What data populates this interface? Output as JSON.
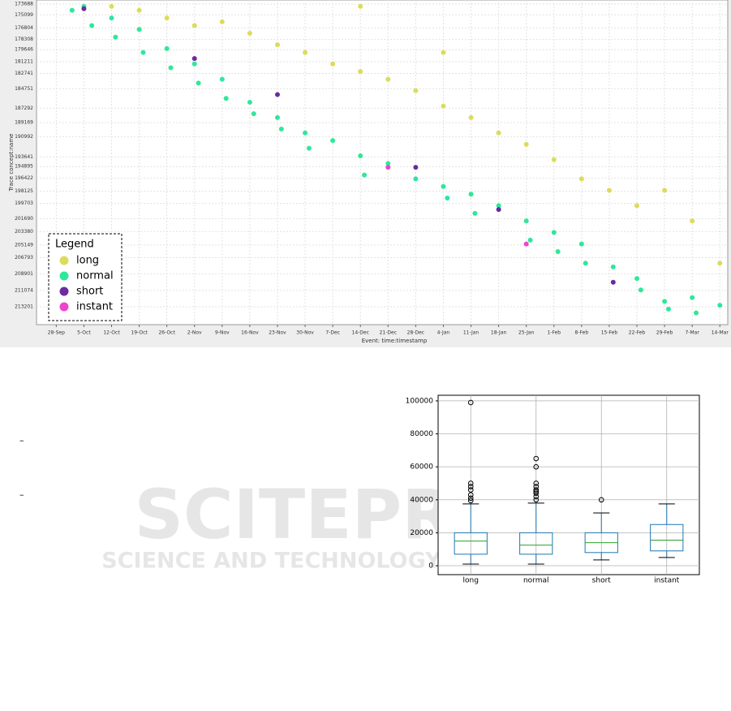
{
  "chart_data": [
    {
      "type": "scatter",
      "x_label": "Event: time:timestamp",
      "y_label": "Trace concept:name",
      "xlim": [
        "23-Sep",
        "16-Mar"
      ],
      "xticks": [
        "28-Sep",
        "5-Oct",
        "12-Oct",
        "19-Oct",
        "26-Oct",
        "2-Nov",
        "9-Nov",
        "16-Nov",
        "23-Nov",
        "30-Nov",
        "7-Dec",
        "14-Dec",
        "21-Dec",
        "28-Dec",
        "4-Jan",
        "11-Jan",
        "18-Jan",
        "25-Jan",
        "1-Feb",
        "8-Feb",
        "15-Feb",
        "22-Feb",
        "29-Feb",
        "7-Mar",
        "14-Mar"
      ],
      "ylim": [
        173160,
        215530
      ],
      "y_inverted": true,
      "yticks": [
        173688,
        175099,
        176804,
        178308,
        179646,
        181211,
        182741,
        184751,
        187292,
        189169,
        190992,
        193641,
        194895,
        196422,
        198125,
        199703,
        201690,
        203380,
        205149,
        206793,
        208901,
        211074,
        213201
      ],
      "grid": true,
      "legend_title": "Legend",
      "legend": "lower left",
      "series": [
        {
          "name": "long",
          "color": "#dcdc5a",
          "x": [
            "12-Oct",
            "19-Oct",
            "26-Oct",
            "2-Nov",
            "9-Nov",
            "16-Nov",
            "23-Nov",
            "30-Nov",
            "7-Dec",
            "14-Dec",
            "21-Dec",
            "28-Dec",
            "4-Jan",
            "11-Jan",
            "18-Jan",
            "25-Jan",
            "1-Feb",
            "8-Feb",
            "15-Feb",
            "22-Feb",
            "29-Feb",
            "7-Mar",
            "14-Mar",
            "14-Dec",
            "4-Jan"
          ],
          "values": [
            174000,
            174500,
            175500,
            176500,
            176000,
            177500,
            179000,
            180000,
            181500,
            182500,
            183500,
            185000,
            187000,
            188500,
            190500,
            192000,
            194000,
            196500,
            198000,
            200000,
            198000,
            202000,
            207500,
            174000,
            180000
          ]
        },
        {
          "name": "normal",
          "color": "#2ee89a",
          "x": [
            "2-Oct",
            "5-Oct",
            "7-Oct",
            "12-Oct",
            "13-Oct",
            "19-Oct",
            "20-Oct",
            "26-Oct",
            "27-Oct",
            "2-Nov",
            "3-Nov",
            "9-Nov",
            "10-Nov",
            "16-Nov",
            "17-Nov",
            "23-Nov",
            "24-Nov",
            "30-Nov",
            "1-Dec",
            "7-Dec",
            "14-Dec",
            "15-Dec",
            "21-Dec",
            "28-Dec",
            "4-Jan",
            "5-Jan",
            "11-Jan",
            "12-Jan",
            "18-Jan",
            "25-Jan",
            "26-Jan",
            "1-Feb",
            "2-Feb",
            "8-Feb",
            "9-Feb",
            "16-Feb",
            "22-Feb",
            "23-Feb",
            "29-Feb",
            "1-Mar",
            "7-Mar",
            "8-Mar",
            "14-Mar"
          ],
          "values": [
            174500,
            174000,
            176500,
            175500,
            178000,
            177000,
            180000,
            179500,
            182000,
            181500,
            184000,
            183500,
            186000,
            186500,
            188000,
            188500,
            190000,
            190500,
            192500,
            191500,
            193500,
            196000,
            194500,
            196500,
            197500,
            199000,
            198500,
            201000,
            200000,
            202000,
            204500,
            203500,
            206000,
            205000,
            207500,
            208000,
            209500,
            211000,
            212500,
            213500,
            212000,
            214000,
            213000
          ]
        },
        {
          "name": "short",
          "color": "#6a2ca0",
          "x": [
            "5-Oct",
            "2-Nov",
            "23-Nov",
            "28-Dec",
            "18-Jan",
            "16-Feb"
          ],
          "values": [
            174300,
            180800,
            185500,
            195000,
            200500,
            210000
          ]
        },
        {
          "name": "instant",
          "color": "#ee44cc",
          "x": [
            "21-Dec",
            "25-Jan"
          ],
          "values": [
            195000,
            205000
          ]
        }
      ]
    },
    {
      "type": "box",
      "categories": [
        "long",
        "normal",
        "short",
        "instant"
      ],
      "ylim": [
        -5400,
        103400
      ],
      "yticks": [
        0,
        20000,
        40000,
        60000,
        80000,
        100000
      ],
      "grid": true,
      "box_color": "#1f77b4",
      "median_color": "#2ca02c",
      "whislo": [
        1000,
        1000,
        3500,
        5000
      ],
      "q1": [
        7000,
        7000,
        8000,
        9000
      ],
      "med": [
        15000,
        12500,
        14000,
        15500
      ],
      "q3": [
        20000,
        20000,
        20000,
        25000
      ],
      "whishi": [
        37500,
        38000,
        32000,
        37500
      ],
      "fliers": [
        [
          99000,
          50000,
          48000,
          46000,
          43000,
          41000,
          39500
        ],
        [
          65000,
          60000,
          50000,
          48000,
          46000,
          45000,
          44000,
          42000,
          40000
        ],
        [
          40000
        ],
        []
      ]
    }
  ],
  "watermark": {
    "title": "SCITEPRESS",
    "subtitle": "SCIENCE AND TECHNOLOGY PUBLICATIONS"
  },
  "side_marks": [
    "–",
    "–"
  ]
}
